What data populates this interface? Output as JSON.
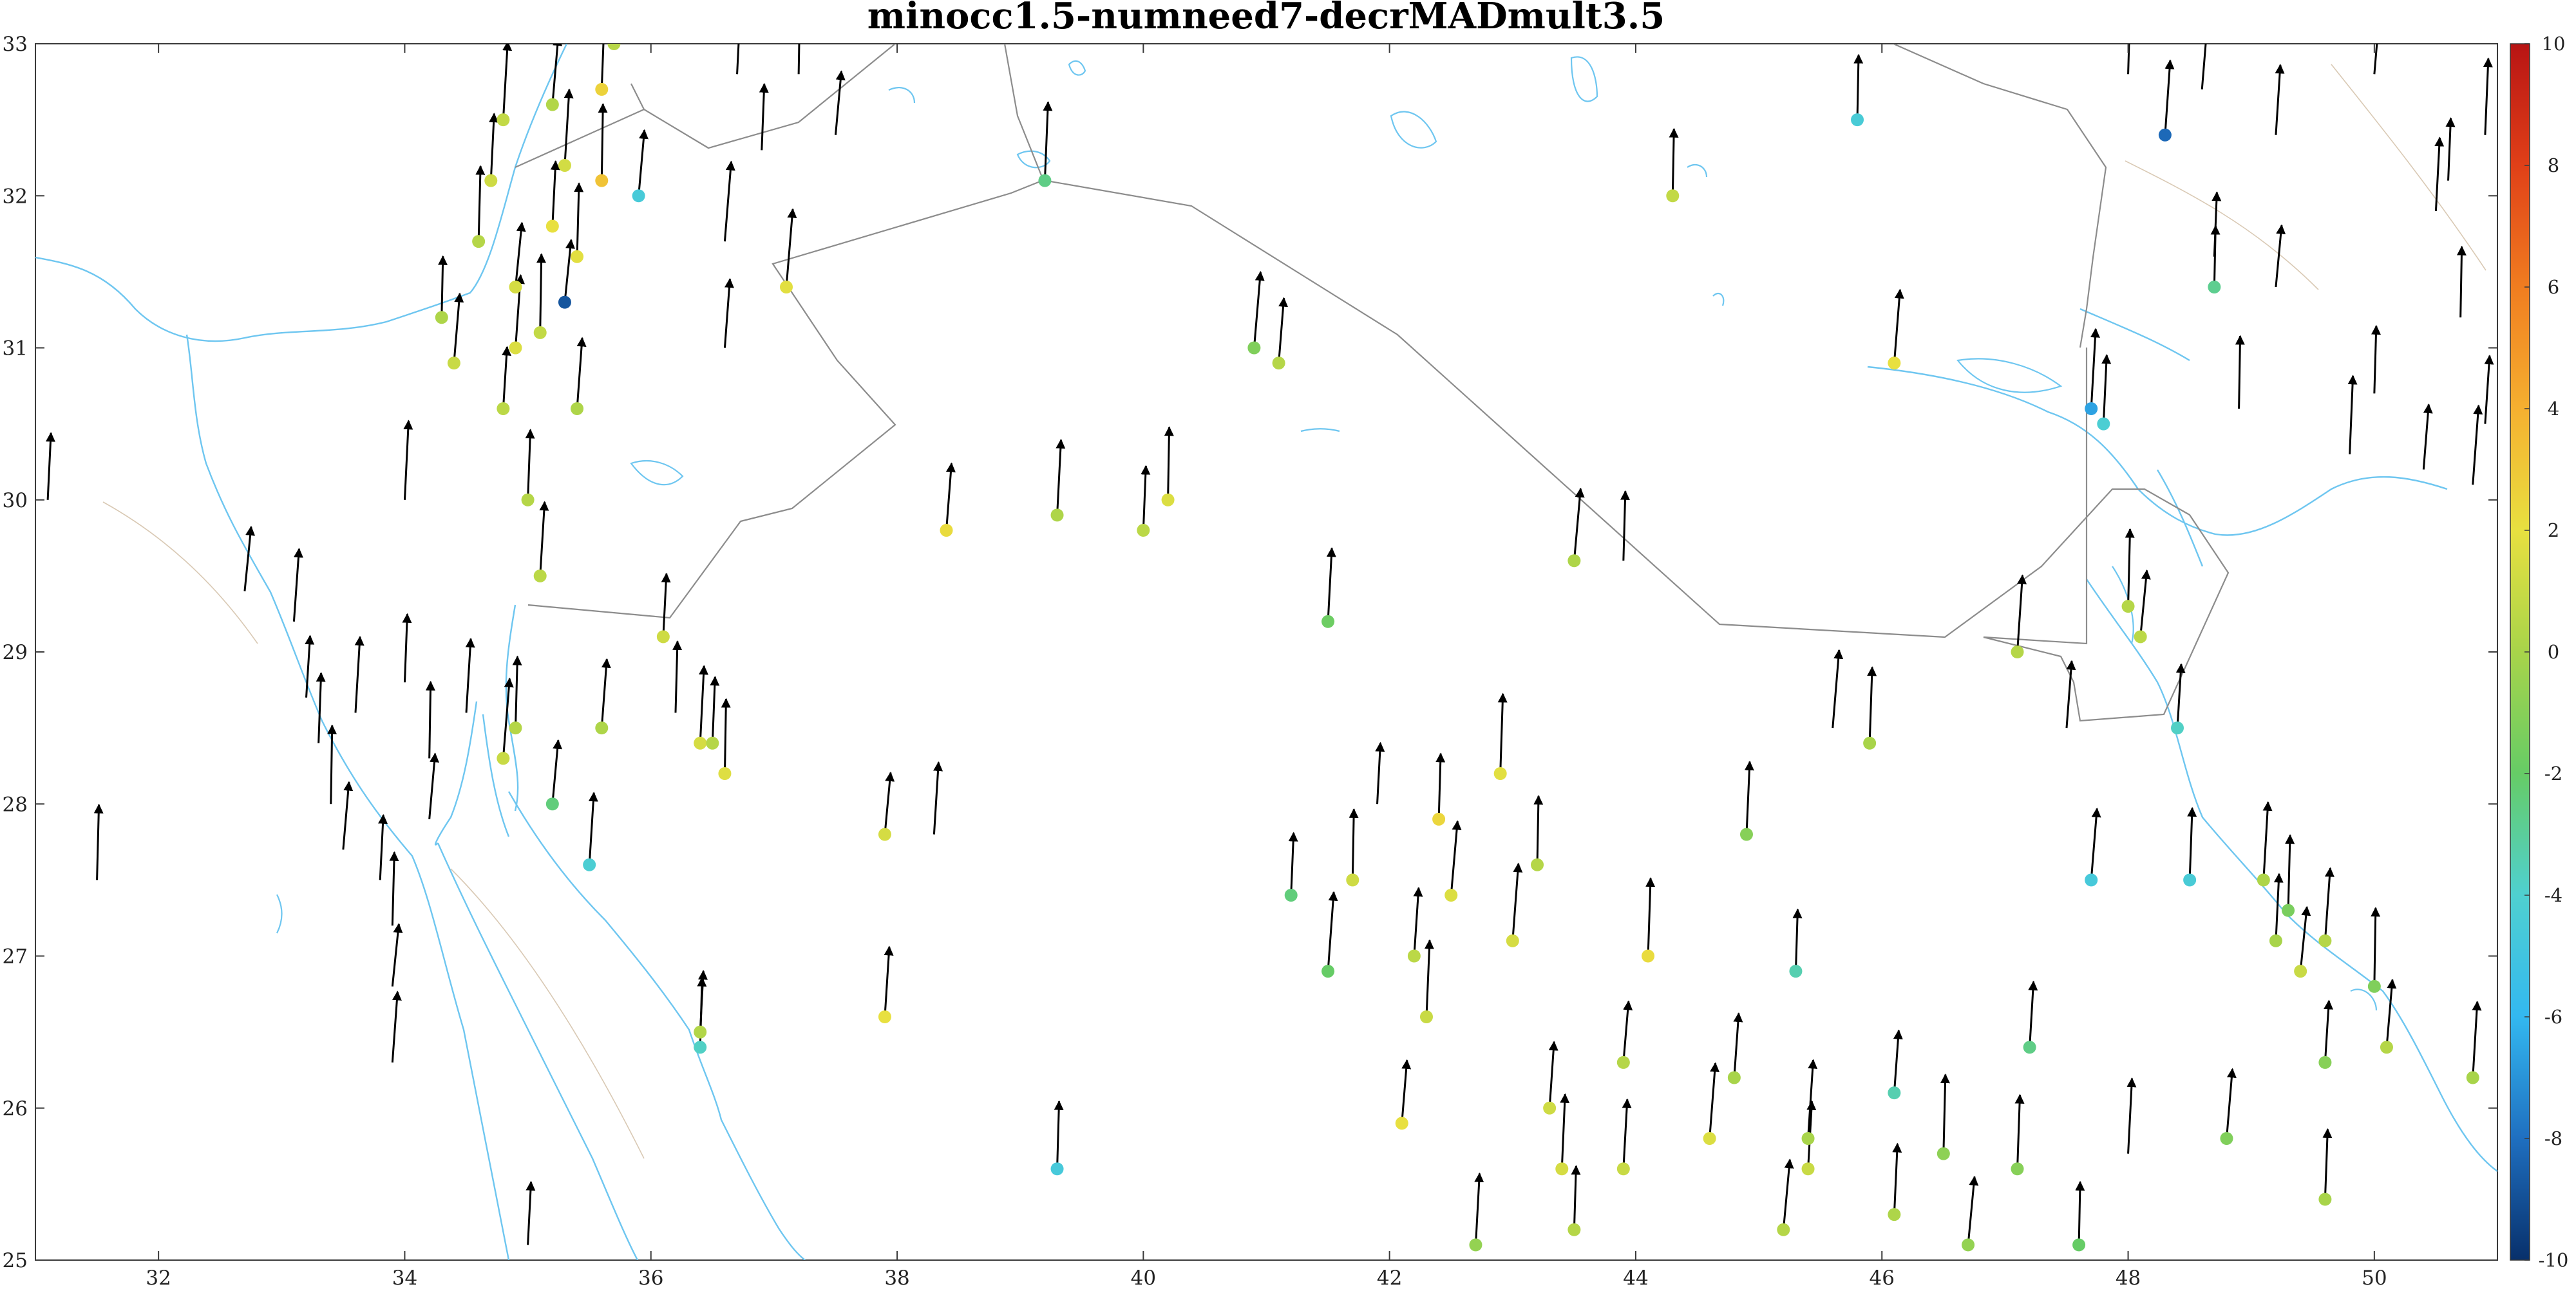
{
  "title": "minocc1.5-numneed7-decrMADmult3.5",
  "chart_data": {
    "type": "scatter",
    "title": "minocc1.5-numneed7-decrMADmult3.5",
    "xlabel": "",
    "ylabel": "",
    "xlim": [
      31,
      51
    ],
    "ylim": [
      25,
      33
    ],
    "xticks": [
      32,
      34,
      36,
      38,
      40,
      42,
      44,
      46,
      48,
      50
    ],
    "yticks": [
      25,
      26,
      27,
      28,
      29,
      30,
      31,
      32,
      33
    ],
    "colorbar": {
      "range": [
        -10,
        10
      ],
      "ticks": [
        -10,
        -8,
        -6,
        -4,
        -2,
        0,
        2,
        4,
        6,
        8,
        10
      ],
      "colors": [
        "#08306b",
        "#1f6fc0",
        "#33b8f0",
        "#4fd0d0",
        "#66cc66",
        "#a8d44a",
        "#e8e040",
        "#f5b030",
        "#f07d20",
        "#e04018",
        "#b81414"
      ]
    },
    "grid": false,
    "points": [
      {
        "lon": 34.3,
        "lat": 31.2,
        "v": 0.2
      },
      {
        "lon": 34.4,
        "lat": 30.9,
        "v": 1.0
      },
      {
        "lon": 34.8,
        "lat": 32.5,
        "v": 0.8
      },
      {
        "lon": 34.7,
        "lat": 32.1,
        "v": 1.2
      },
      {
        "lon": 34.6,
        "lat": 31.7,
        "v": 0.4
      },
      {
        "lon": 34.9,
        "lat": 31.4,
        "v": 1.4
      },
      {
        "lon": 34.9,
        "lat": 31.0,
        "v": 1.6
      },
      {
        "lon": 34.8,
        "lat": 30.6,
        "v": 0.6
      },
      {
        "lon": 35.0,
        "lat": 30.0,
        "v": 0.4
      },
      {
        "lon": 35.1,
        "lat": 31.1,
        "v": 0.8
      },
      {
        "lon": 35.2,
        "lat": 32.6,
        "v": 0.3
      },
      {
        "lon": 35.3,
        "lat": 32.2,
        "v": 1.3
      },
      {
        "lon": 35.2,
        "lat": 31.8,
        "v": 2.0
      },
      {
        "lon": 35.4,
        "lat": 31.6,
        "v": 1.8
      },
      {
        "lon": 35.3,
        "lat": 31.3,
        "v": -8.8
      },
      {
        "lon": 35.4,
        "lat": 30.6,
        "v": 0.2
      },
      {
        "lon": 35.7,
        "lat": 33.0,
        "v": 0.5
      },
      {
        "lon": 35.6,
        "lat": 32.7,
        "v": 2.6
      },
      {
        "lon": 35.6,
        "lat": 32.1,
        "v": 3.2
      },
      {
        "lon": 35.9,
        "lat": 32.0,
        "v": -4.5
      },
      {
        "lon": 35.1,
        "lat": 29.5,
        "v": 0.6
      },
      {
        "lon": 36.1,
        "lat": 29.1,
        "v": 1.2
      },
      {
        "lon": 34.9,
        "lat": 28.5,
        "v": 0.4
      },
      {
        "lon": 34.8,
        "lat": 28.3,
        "v": 1.0
      },
      {
        "lon": 35.6,
        "lat": 28.5,
        "v": 0.2
      },
      {
        "lon": 36.4,
        "lat": 28.4,
        "v": 1.4
      },
      {
        "lon": 36.5,
        "lat": 28.4,
        "v": 0.4
      },
      {
        "lon": 36.6,
        "lat": 28.2,
        "v": 1.7
      },
      {
        "lon": 35.2,
        "lat": 28.0,
        "v": -2.4
      },
      {
        "lon": 35.5,
        "lat": 27.6,
        "v": -4.2
      },
      {
        "lon": 36.4,
        "lat": 26.5,
        "v": 0.3
      },
      {
        "lon": 36.4,
        "lat": 26.4,
        "v": -3.8
      },
      {
        "lon": 37.1,
        "lat": 31.4,
        "v": 1.8
      },
      {
        "lon": 38.4,
        "lat": 29.8,
        "v": 2.2
      },
      {
        "lon": 39.3,
        "lat": 29.9,
        "v": 0.2
      },
      {
        "lon": 40.0,
        "lat": 29.8,
        "v": 0.6
      },
      {
        "lon": 40.2,
        "lat": 30.0,
        "v": 1.6
      },
      {
        "lon": 37.9,
        "lat": 27.8,
        "v": 1.4
      },
      {
        "lon": 37.9,
        "lat": 26.6,
        "v": 2.0
      },
      {
        "lon": 39.2,
        "lat": 32.1,
        "v": -2.6
      },
      {
        "lon": 39.3,
        "lat": 25.6,
        "v": -4.6
      },
      {
        "lon": 40.9,
        "lat": 31.0,
        "v": -1.2
      },
      {
        "lon": 41.1,
        "lat": 30.9,
        "v": 0.4
      },
      {
        "lon": 41.5,
        "lat": 29.2,
        "v": -1.8
      },
      {
        "lon": 41.2,
        "lat": 27.4,
        "v": -2.4
      },
      {
        "lon": 41.7,
        "lat": 27.5,
        "v": 1.2
      },
      {
        "lon": 41.5,
        "lat": 26.9,
        "v": -2.0
      },
      {
        "lon": 42.2,
        "lat": 27.0,
        "v": 0.6
      },
      {
        "lon": 42.3,
        "lat": 26.6,
        "v": 1.0
      },
      {
        "lon": 42.4,
        "lat": 27.9,
        "v": 2.4
      },
      {
        "lon": 42.5,
        "lat": 27.4,
        "v": 1.6
      },
      {
        "lon": 42.1,
        "lat": 25.9,
        "v": 2.0
      },
      {
        "lon": 42.7,
        "lat": 25.1,
        "v": -0.6
      },
      {
        "lon": 42.9,
        "lat": 28.2,
        "v": 1.8
      },
      {
        "lon": 43.2,
        "lat": 27.6,
        "v": 0.4
      },
      {
        "lon": 43.0,
        "lat": 27.1,
        "v": 1.4
      },
      {
        "lon": 43.3,
        "lat": 26.0,
        "v": 1.2
      },
      {
        "lon": 43.4,
        "lat": 25.6,
        "v": 1.4
      },
      {
        "lon": 43.5,
        "lat": 25.2,
        "v": 0.4
      },
      {
        "lon": 43.5,
        "lat": 29.6,
        "v": 0.2
      },
      {
        "lon": 43.9,
        "lat": 26.3,
        "v": 0.4
      },
      {
        "lon": 43.9,
        "lat": 25.6,
        "v": 1.0
      },
      {
        "lon": 44.1,
        "lat": 27.0,
        "v": 2.2
      },
      {
        "lon": 44.3,
        "lat": 32.0,
        "v": 0.8
      },
      {
        "lon": 44.6,
        "lat": 25.8,
        "v": 1.6
      },
      {
        "lon": 44.8,
        "lat": 26.2,
        "v": 0.0
      },
      {
        "lon": 44.9,
        "lat": 27.8,
        "v": -1.0
      },
      {
        "lon": 45.3,
        "lat": 26.9,
        "v": -3.4
      },
      {
        "lon": 45.2,
        "lat": 25.2,
        "v": 0.4
      },
      {
        "lon": 45.4,
        "lat": 25.8,
        "v": 0.0
      },
      {
        "lon": 45.4,
        "lat": 25.6,
        "v": 1.0
      },
      {
        "lon": 45.9,
        "lat": 28.4,
        "v": 0.0
      },
      {
        "lon": 45.8,
        "lat": 32.5,
        "v": -4.4
      },
      {
        "lon": 46.1,
        "lat": 30.9,
        "v": 2.0
      },
      {
        "lon": 46.1,
        "lat": 26.1,
        "v": -3.4
      },
      {
        "lon": 46.1,
        "lat": 25.3,
        "v": 0.2
      },
      {
        "lon": 46.5,
        "lat": 25.7,
        "v": -0.8
      },
      {
        "lon": 46.7,
        "lat": 25.1,
        "v": -0.6
      },
      {
        "lon": 47.1,
        "lat": 29.0,
        "v": 0.4
      },
      {
        "lon": 47.2,
        "lat": 26.4,
        "v": -2.6
      },
      {
        "lon": 47.1,
        "lat": 25.6,
        "v": -1.0
      },
      {
        "lon": 47.6,
        "lat": 25.1,
        "v": -2.0
      },
      {
        "lon": 47.7,
        "lat": 27.5,
        "v": -4.6
      },
      {
        "lon": 47.7,
        "lat": 30.6,
        "v": -6.6
      },
      {
        "lon": 47.8,
        "lat": 30.5,
        "v": -4.2
      },
      {
        "lon": 48.0,
        "lat": 29.3,
        "v": 0.4
      },
      {
        "lon": 48.1,
        "lat": 29.1,
        "v": 0.6
      },
      {
        "lon": 48.3,
        "lat": 32.4,
        "v": -8.2
      },
      {
        "lon": 48.4,
        "lat": 28.5,
        "v": -3.8
      },
      {
        "lon": 48.5,
        "lat": 27.5,
        "v": -4.4
      },
      {
        "lon": 48.7,
        "lat": 31.4,
        "v": -2.8
      },
      {
        "lon": 48.8,
        "lat": 25.8,
        "v": -1.2
      },
      {
        "lon": 49.1,
        "lat": 27.5,
        "v": 0.2
      },
      {
        "lon": 49.2,
        "lat": 27.1,
        "v": 0.0
      },
      {
        "lon": 49.3,
        "lat": 27.3,
        "v": -1.4
      },
      {
        "lon": 49.4,
        "lat": 26.9,
        "v": 1.0
      },
      {
        "lon": 49.6,
        "lat": 27.1,
        "v": 0.4
      },
      {
        "lon": 49.6,
        "lat": 26.3,
        "v": -1.0
      },
      {
        "lon": 49.6,
        "lat": 25.4,
        "v": 0.0
      },
      {
        "lon": 50.0,
        "lat": 26.8,
        "v": -1.2
      },
      {
        "lon": 50.1,
        "lat": 26.4,
        "v": 0.4
      },
      {
        "lon": 50.8,
        "lat": 26.2,
        "v": 0.0
      }
    ],
    "arrows_only": [
      {
        "lon": 31.1,
        "lat": 30.0
      },
      {
        "lon": 31.5,
        "lat": 27.5
      },
      {
        "lon": 32.7,
        "lat": 29.4
      },
      {
        "lon": 33.1,
        "lat": 29.2
      },
      {
        "lon": 33.2,
        "lat": 28.7
      },
      {
        "lon": 33.3,
        "lat": 28.4
      },
      {
        "lon": 33.4,
        "lat": 28.0
      },
      {
        "lon": 33.5,
        "lat": 27.7
      },
      {
        "lon": 33.6,
        "lat": 28.6
      },
      {
        "lon": 33.8,
        "lat": 27.5
      },
      {
        "lon": 33.9,
        "lat": 27.2
      },
      {
        "lon": 33.9,
        "lat": 26.8
      },
      {
        "lon": 33.9,
        "lat": 26.3
      },
      {
        "lon": 34.0,
        "lat": 30.0
      },
      {
        "lon": 34.0,
        "lat": 28.8
      },
      {
        "lon": 34.2,
        "lat": 28.3
      },
      {
        "lon": 34.2,
        "lat": 27.9
      },
      {
        "lon": 34.5,
        "lat": 28.6
      },
      {
        "lon": 35.0,
        "lat": 25.1
      },
      {
        "lon": 36.2,
        "lat": 28.6
      },
      {
        "lon": 36.6,
        "lat": 31.7
      },
      {
        "lon": 36.6,
        "lat": 31.0
      },
      {
        "lon": 36.7,
        "lat": 32.8
      },
      {
        "lon": 36.9,
        "lat": 32.3
      },
      {
        "lon": 37.2,
        "lat": 32.8
      },
      {
        "lon": 37.5,
        "lat": 32.4
      },
      {
        "lon": 38.3,
        "lat": 27.8
      },
      {
        "lon": 41.9,
        "lat": 28.0
      },
      {
        "lon": 43.9,
        "lat": 29.6
      },
      {
        "lon": 45.6,
        "lat": 28.5
      },
      {
        "lon": 47.5,
        "lat": 28.5
      },
      {
        "lon": 48.0,
        "lat": 25.7
      },
      {
        "lon": 48.7,
        "lat": 31.6
      },
      {
        "lon": 48.9,
        "lat": 30.6
      },
      {
        "lon": 49.2,
        "lat": 31.4
      },
      {
        "lon": 49.2,
        "lat": 32.4
      },
      {
        "lon": 49.8,
        "lat": 30.3
      },
      {
        "lon": 50.0,
        "lat": 30.7
      },
      {
        "lon": 50.0,
        "lat": 32.8
      },
      {
        "lon": 50.4,
        "lat": 30.2
      },
      {
        "lon": 50.5,
        "lat": 31.9
      },
      {
        "lon": 50.6,
        "lat": 32.1
      },
      {
        "lon": 50.7,
        "lat": 31.2
      },
      {
        "lon": 50.8,
        "lat": 30.1
      },
      {
        "lon": 50.9,
        "lat": 30.5
      },
      {
        "lon": 50.9,
        "lat": 32.4
      },
      {
        "lon": 48.0,
        "lat": 32.8
      },
      {
        "lon": 47.7,
        "lat": 33.0
      },
      {
        "lon": 48.6,
        "lat": 32.7
      }
    ]
  }
}
